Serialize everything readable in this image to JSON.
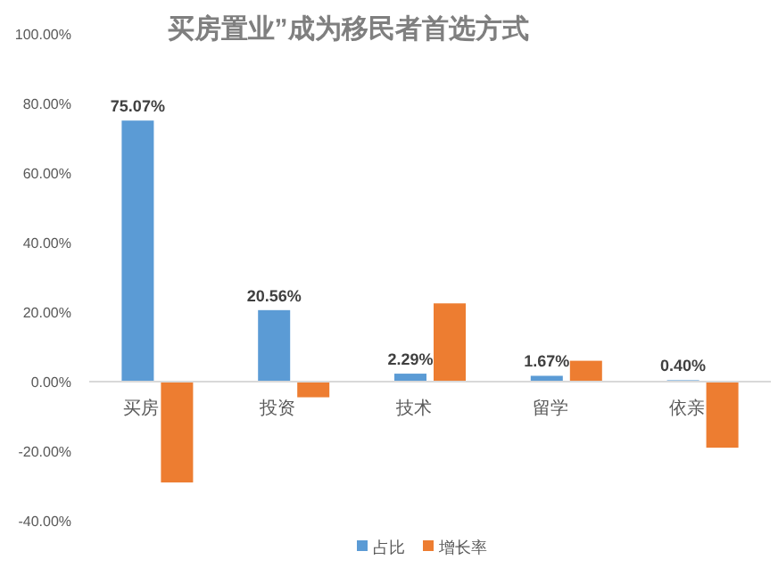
{
  "chart_data": {
    "type": "bar",
    "title": "买房置业”成为移民者首选方式",
    "categories": [
      "买房",
      "投资",
      "技术",
      "留学",
      "依亲"
    ],
    "series": [
      {
        "name": "占比",
        "color": "#5b9bd5",
        "values": [
          75.07,
          20.56,
          2.29,
          1.67,
          0.4
        ],
        "value_labels": [
          "75.07%",
          "20.56%",
          "2.29%",
          "1.67%",
          "0.40%"
        ]
      },
      {
        "name": "增长率",
        "color": "#ed7d31",
        "values": [
          -29,
          -4.5,
          22.5,
          6,
          -19
        ]
      }
    ],
    "ylim": [
      -40,
      100
    ],
    "yticks": [
      {
        "value": -40,
        "label": "-40.00%"
      },
      {
        "value": -20,
        "label": "-20.00%"
      },
      {
        "value": 0,
        "label": "0.00%"
      },
      {
        "value": 20,
        "label": "20.00%"
      },
      {
        "value": 40,
        "label": "40.00%"
      },
      {
        "value": 60,
        "label": "60.00%"
      },
      {
        "value": 80,
        "label": "80.00%"
      },
      {
        "value": 100,
        "label": "100.00%"
      }
    ],
    "grid": false,
    "legend": "bottom"
  }
}
